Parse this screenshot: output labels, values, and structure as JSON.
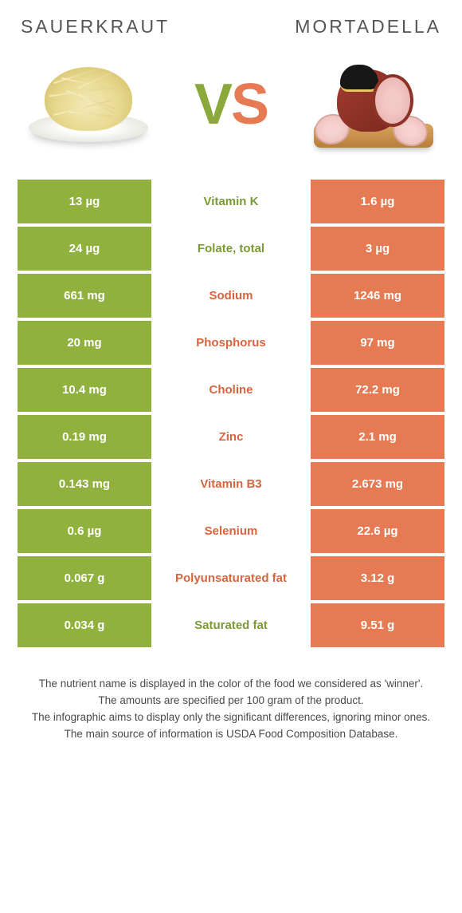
{
  "header": {
    "left_title": "Sauerkraut",
    "right_title": "Mortadella",
    "vs_v": "V",
    "vs_s": "S"
  },
  "colors": {
    "green": "#91b13f",
    "orange": "#e57a53",
    "green_text": "#7a9a32",
    "orange_text": "#d6653f"
  },
  "rows": [
    {
      "left": "13 µg",
      "label": "Vitamin K",
      "right": "1.6 µg",
      "winner": "left"
    },
    {
      "left": "24 µg",
      "label": "Folate, total",
      "right": "3 µg",
      "winner": "left"
    },
    {
      "left": "661 mg",
      "label": "Sodium",
      "right": "1246 mg",
      "winner": "right"
    },
    {
      "left": "20 mg",
      "label": "Phosphorus",
      "right": "97 mg",
      "winner": "right"
    },
    {
      "left": "10.4 mg",
      "label": "Choline",
      "right": "72.2 mg",
      "winner": "right"
    },
    {
      "left": "0.19 mg",
      "label": "Zinc",
      "right": "2.1 mg",
      "winner": "right"
    },
    {
      "left": "0.143 mg",
      "label": "Vitamin B3",
      "right": "2.673 mg",
      "winner": "right"
    },
    {
      "left": "0.6 µg",
      "label": "Selenium",
      "right": "22.6 µg",
      "winner": "right"
    },
    {
      "left": "0.067 g",
      "label": "Polyunsaturated fat",
      "right": "3.12 g",
      "winner": "right"
    },
    {
      "left": "0.034 g",
      "label": "Saturated fat",
      "right": "9.51 g",
      "winner": "left"
    }
  ],
  "footer": {
    "line1": "The nutrient name is displayed in the color of the food we considered as 'winner'.",
    "line2": "The amounts are specified per 100 gram of the product.",
    "line3": "The infographic aims to display only the significant differences, ignoring minor ones.",
    "line4": "The main source of information is USDA Food Composition Database."
  }
}
